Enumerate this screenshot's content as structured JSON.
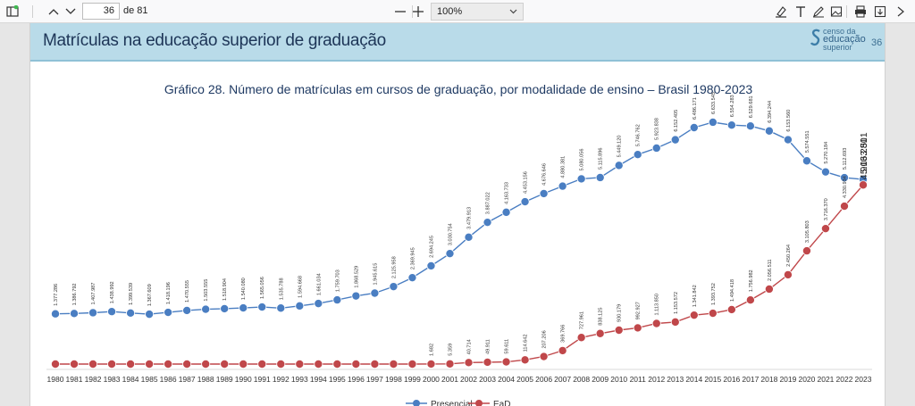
{
  "toolbar": {
    "sidebar_icon": "sidebar-toggle-icon",
    "page_number": "36",
    "page_of": "de 81",
    "zoom_minus": "—",
    "zoom_plus": "+",
    "zoom_value": "100%",
    "right_icons": [
      "highlight-icon",
      "text-icon",
      "draw-icon",
      "image-icon",
      "print-icon",
      "save-icon",
      "more-icon"
    ]
  },
  "page": {
    "header_title": "Matrículas na educação superior de graduação",
    "logo_line1": "censo da",
    "logo_line2": "educação",
    "logo_line3": "superior",
    "page_num": "36",
    "chart_title": "Gráfico 28. Número de matrículas em cursos de graduação, por modalidade de ensino – Brasil 1980-2023"
  },
  "colors": {
    "presencial": "#4a7ec2",
    "ead": "#c0474a",
    "header_bg": "#b9dbe9"
  },
  "chart_data": {
    "type": "line",
    "title": "Gráfico 28. Número de matrículas em cursos de graduação, por modalidade de ensino – Brasil 1980-2023",
    "x": [
      "1980",
      "1981",
      "1982",
      "1983",
      "1984",
      "1985",
      "1986",
      "1987",
      "1988",
      "1989",
      "1990",
      "1991",
      "1992",
      "1993",
      "1994",
      "1995",
      "1996",
      "1997",
      "1998",
      "1999",
      "2000",
      "2001",
      "2002",
      "2003",
      "2004",
      "2005",
      "2006",
      "2007",
      "2008",
      "2009",
      "2010",
      "2011",
      "2012",
      "2013",
      "2014",
      "2015",
      "2016",
      "2017",
      "2018",
      "2019",
      "2020",
      "2021",
      "2022",
      "2023"
    ],
    "ylim": [
      0,
      7000000
    ],
    "series": [
      {
        "name": "Presencial",
        "values": [
          1377286,
          1386792,
          1407987,
          1438992,
          1399539,
          1367609,
          1418196,
          1470555,
          1503555,
          1518904,
          1540080,
          1565056,
          1535788,
          1594668,
          1661034,
          1759703,
          1868529,
          1945615,
          2125958,
          2369945,
          2694245,
          3030754,
          3479913,
          3887022,
          4163733,
          4453156,
          4676646,
          4880381,
          5080056,
          5115896,
          5449120,
          5746762,
          5923838,
          6152405,
          6486171,
          6633545,
          6554283,
          6529681,
          6394244,
          6153560,
          5574551,
          5270184,
          5112693,
          5063501
        ],
        "labels": [
          "1.377.286",
          "1.386.792",
          "1.407.987",
          "1.438.992",
          "1.399.539",
          "1.367.609",
          "1.418.196",
          "1.470.555",
          "1.503.555",
          "1.518.904",
          "1.540.080",
          "1.565.056",
          "1.535.788",
          "1.594.668",
          "1.661.034",
          "1.759.703",
          "1.868.529",
          "1.945.615",
          "2.125.958",
          "2.369.945",
          "2.694.245",
          "3.030.754",
          "3.479.913",
          "3.887.022",
          "4.163.733",
          "4.453.156",
          "4.676.646",
          "4.880.381",
          "5.080.056",
          "5.115.896",
          "5.449.120",
          "5.746.762",
          "5.923.838",
          "6.152.405",
          "6.486.171",
          "6.633.545",
          "6.554.283",
          "6.529.681",
          "6.394.244",
          "6.153.560",
          "5.574.551",
          "5.270.184",
          "5.112.693",
          "5.063.501"
        ]
      },
      {
        "name": "EaD",
        "values": [
          0,
          0,
          0,
          0,
          0,
          0,
          0,
          0,
          0,
          0,
          0,
          0,
          0,
          0,
          0,
          0,
          0,
          0,
          0,
          0,
          1682,
          5359,
          40714,
          49911,
          59611,
          114642,
          207206,
          369766,
          727961,
          838125,
          930179,
          992927,
          1113850,
          1153572,
          1341842,
          1393752,
          1494418,
          1756982,
          2056511,
          2450264,
          3105803,
          3716370,
          4330934,
          4913281
        ],
        "labels": [
          "",
          "",
          "",
          "",
          "",
          "",
          "",
          "",
          "",
          "",
          "",
          "",
          "",
          "",
          "",
          "",
          "",
          "",
          "",
          "",
          "1.682",
          "5.359",
          "40.714",
          "49.911",
          "59.611",
          "114.642",
          "207.206",
          "369.766",
          "727.961",
          "838.125",
          "930.179",
          "992.927",
          "1.113.850",
          "1.153.572",
          "1.341.842",
          "1.393.752",
          "1.494.418",
          "1.756.982",
          "2.056.511",
          "2.450.264",
          "3.105.803",
          "3.716.370",
          "4.330.934",
          "4.913.281"
        ]
      }
    ],
    "legend": "bottom"
  }
}
